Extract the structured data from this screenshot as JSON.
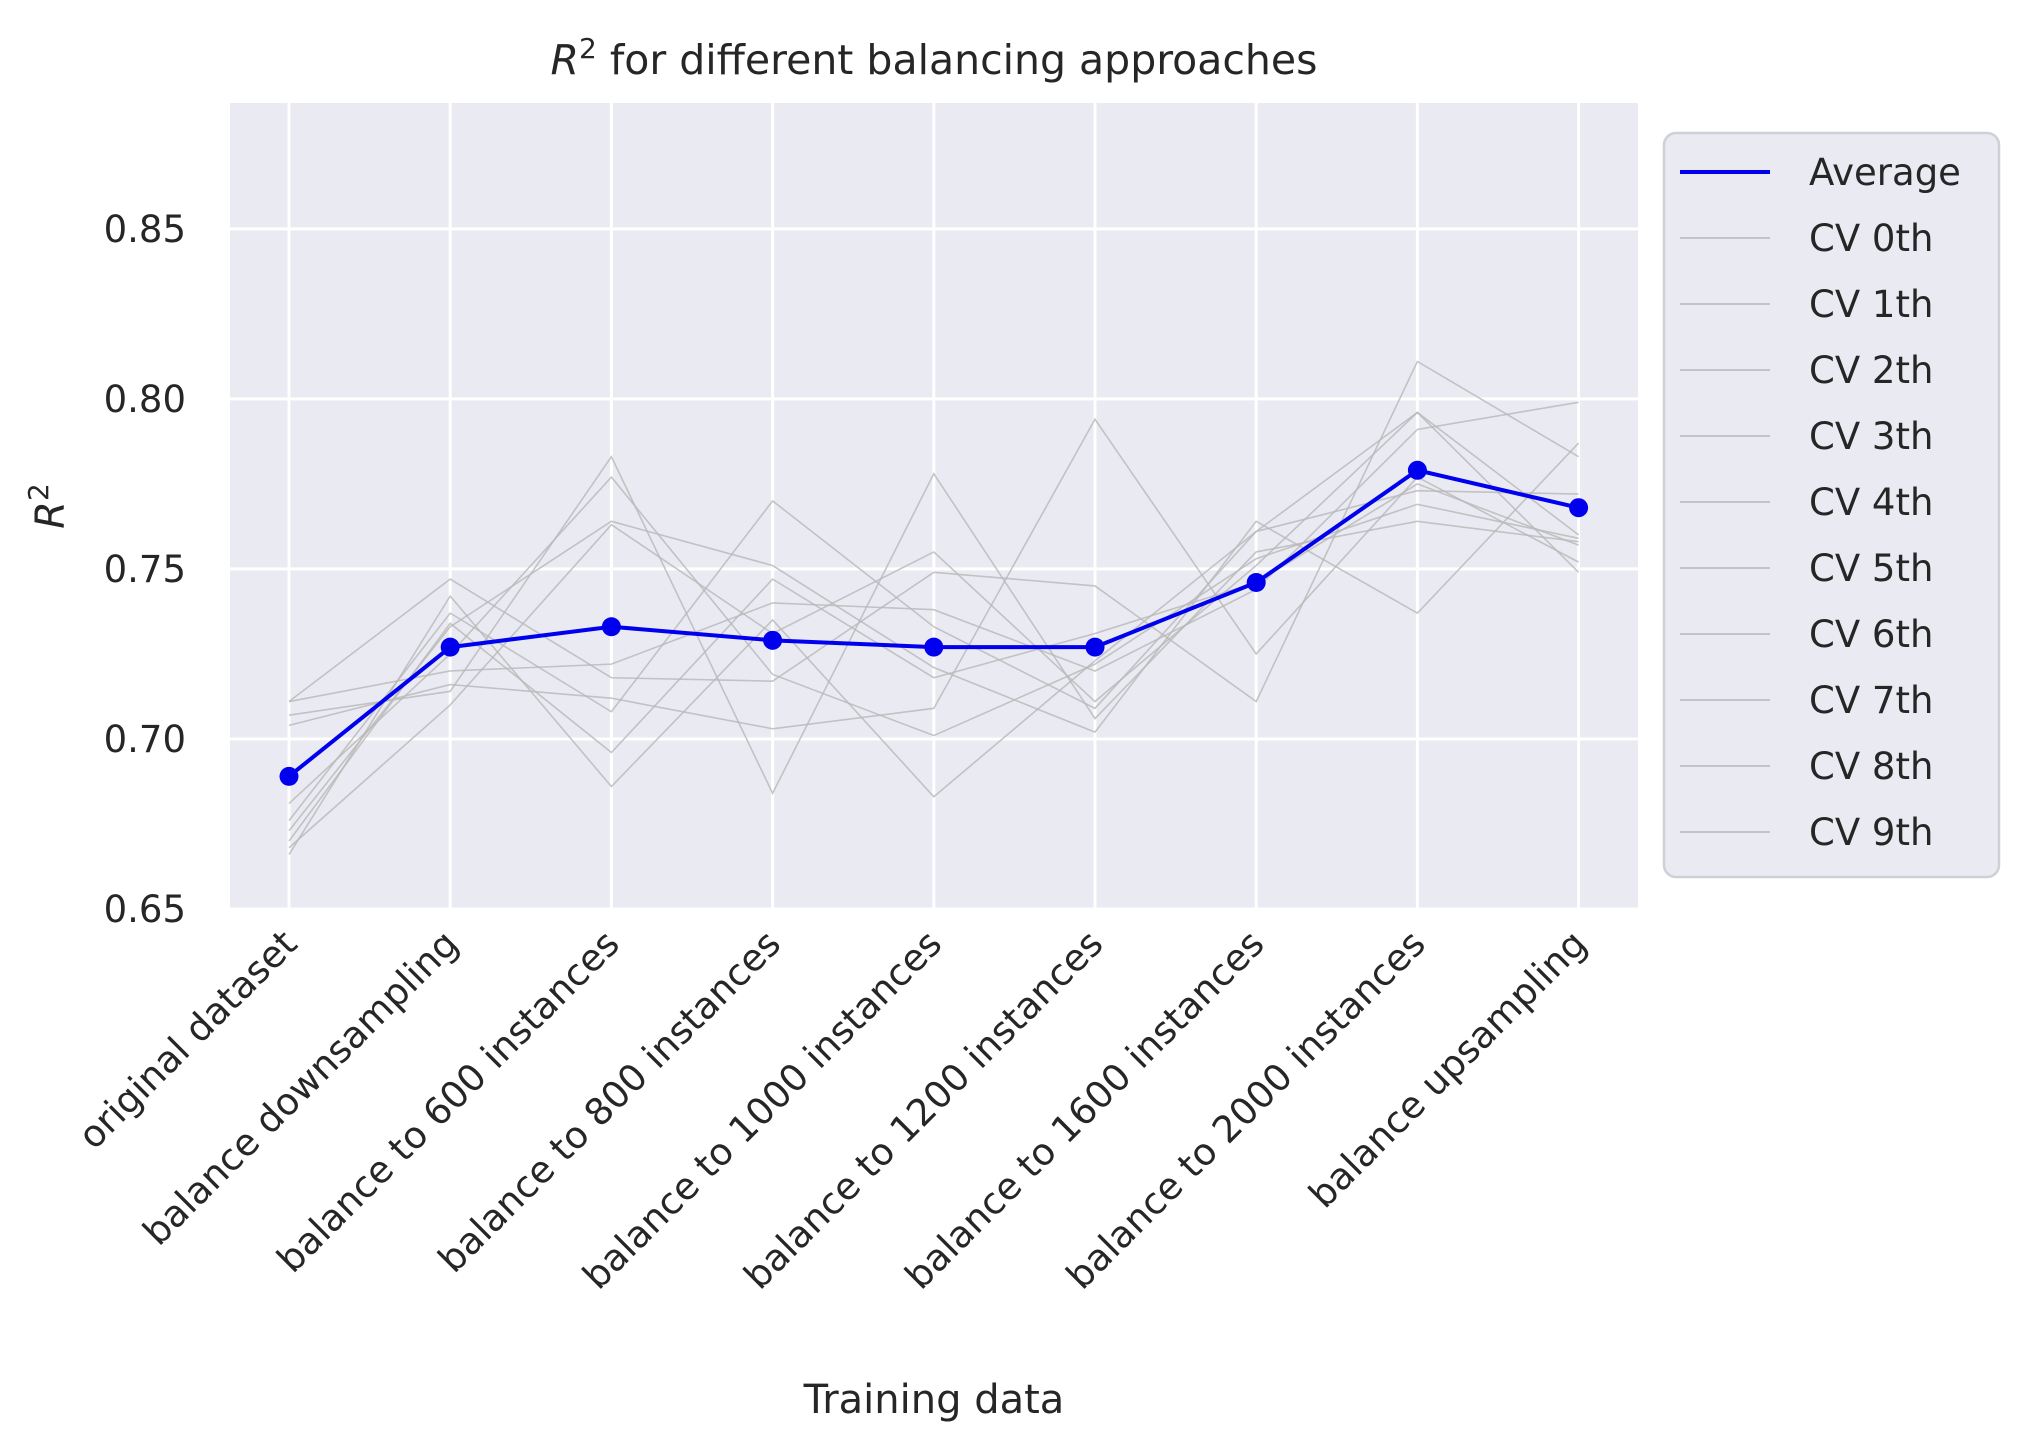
{
  "chart_data": {
    "type": "line",
    "title_prefix": "R",
    "title_sup": "2",
    "title_suffix": " for different balancing approaches",
    "xlabel": "Training data",
    "ylabel_base": "R",
    "ylabel_sup": "2",
    "ylim": [
      0.65,
      0.887
    ],
    "yticks": [
      "0.65",
      "0.70",
      "0.75",
      "0.80",
      "0.85"
    ],
    "ytick_values": [
      0.65,
      0.7,
      0.75,
      0.8,
      0.85
    ],
    "categories": [
      "original dataset",
      "balance downsampling",
      "balance to 600 instances",
      "balance to 800 instances",
      "balance to 1000 instances",
      "balance to 1200 instances",
      "balance to 1600 instances",
      "balance to 2000 instances",
      "balance upsampling"
    ],
    "grid": true,
    "legend_position": "outside right",
    "colors": {
      "average": "#0000ee",
      "cv": "#b8b8b8",
      "background": "#eaeaf2",
      "grid": "#ffffff"
    },
    "series": [
      {
        "name": "Average",
        "values": [
          0.689,
          0.727,
          0.733,
          0.729,
          0.727,
          0.727,
          0.746,
          0.779,
          0.768
        ]
      },
      {
        "name": "CV 0th",
        "values": [
          0.711,
          0.747,
          0.718,
          0.717,
          0.749,
          0.745,
          0.711,
          0.811,
          0.783
        ]
      },
      {
        "name": "CV 1th",
        "values": [
          0.666,
          0.742,
          0.686,
          0.735,
          0.683,
          0.723,
          0.761,
          0.796,
          0.749
        ]
      },
      {
        "name": "CV 2th",
        "values": [
          0.707,
          0.714,
          0.783,
          0.684,
          0.778,
          0.706,
          0.755,
          0.764,
          0.758
        ]
      },
      {
        "name": "CV 3th",
        "values": [
          0.673,
          0.733,
          0.764,
          0.751,
          0.721,
          0.702,
          0.764,
          0.737,
          0.787
        ]
      },
      {
        "name": "CV 4th",
        "values": [
          0.704,
          0.716,
          0.712,
          0.703,
          0.709,
          0.794,
          0.725,
          0.777,
          0.752
        ]
      },
      {
        "name": "CV 5th",
        "values": [
          0.681,
          0.725,
          0.777,
          0.719,
          0.701,
          0.722,
          0.753,
          0.769,
          0.759
        ]
      },
      {
        "name": "CV 6th",
        "values": [
          0.67,
          0.734,
          0.696,
          0.747,
          0.718,
          0.731,
          0.746,
          0.775,
          0.757
        ]
      },
      {
        "name": "CV 7th",
        "values": [
          0.676,
          0.737,
          0.708,
          0.77,
          0.733,
          0.709,
          0.761,
          0.773,
          0.772
        ]
      },
      {
        "name": "CV 8th",
        "values": [
          0.711,
          0.72,
          0.722,
          0.74,
          0.738,
          0.72,
          0.744,
          0.791,
          0.799
        ]
      },
      {
        "name": "CV 9th",
        "values": [
          0.668,
          0.71,
          0.763,
          0.731,
          0.755,
          0.711,
          0.751,
          0.796,
          0.76
        ]
      }
    ]
  }
}
